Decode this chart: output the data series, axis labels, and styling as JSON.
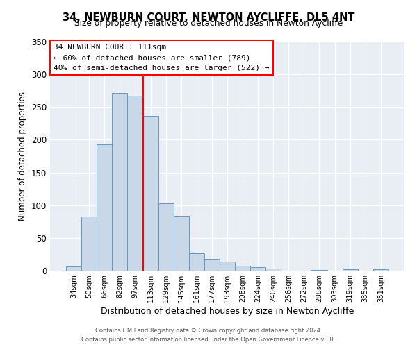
{
  "title": "34, NEWBURN COURT, NEWTON AYCLIFFE, DL5 4NT",
  "subtitle": "Size of property relative to detached houses in Newton Aycliffe",
  "xlabel": "Distribution of detached houses by size in Newton Aycliffe",
  "ylabel": "Number of detached properties",
  "bar_labels": [
    "34sqm",
    "50sqm",
    "66sqm",
    "82sqm",
    "97sqm",
    "113sqm",
    "129sqm",
    "145sqm",
    "161sqm",
    "177sqm",
    "193sqm",
    "208sqm",
    "224sqm",
    "240sqm",
    "256sqm",
    "272sqm",
    "288sqm",
    "303sqm",
    "319sqm",
    "335sqm",
    "351sqm"
  ],
  "bar_values": [
    6,
    83,
    193,
    271,
    267,
    236,
    103,
    84,
    27,
    18,
    14,
    7,
    5,
    3,
    0,
    0,
    1,
    0,
    2,
    0,
    2
  ],
  "bar_color": "#c8d8e8",
  "bar_edge_color": "#6699bb",
  "ylim": [
    0,
    350
  ],
  "yticks": [
    0,
    50,
    100,
    150,
    200,
    250,
    300,
    350
  ],
  "annotation_line_x_label": "113sqm",
  "annotation_line_color": "red",
  "annotation_box_text": "34 NEWBURN COURT: 111sqm\n← 60% of detached houses are smaller (789)\n40% of semi-detached houses are larger (522) →",
  "footer_line1": "Contains HM Land Registry data © Crown copyright and database right 2024.",
  "footer_line2": "Contains public sector information licensed under the Open Government Licence v3.0.",
  "background_color": "#ffffff",
  "plot_bg_color": "#e8eef4"
}
